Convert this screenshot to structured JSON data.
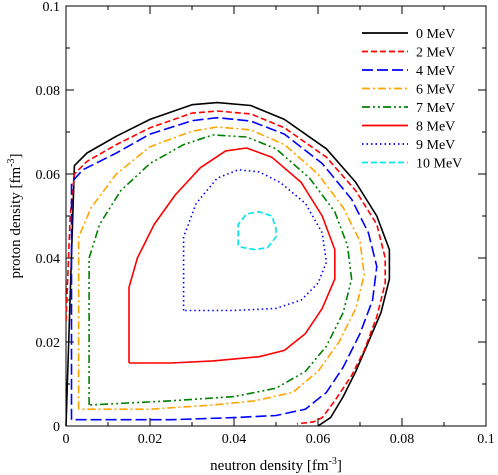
{
  "chart_data": {
    "type": "line",
    "xlabel": "neutron density [fm",
    "xlabel_exp": "-3",
    "xlabel_end": "]",
    "ylabel": "proton density [fm",
    "ylabel_exp": "-3",
    "ylabel_end": "]",
    "xlim": [
      0,
      0.1
    ],
    "ylim": [
      0,
      0.1
    ],
    "xticks": [
      "0",
      "0.02",
      "0.04",
      "0.06",
      "0.08",
      "0.1"
    ],
    "yticks": [
      "0",
      "0.02",
      "0.04",
      "0.06",
      "0.08",
      "0.1"
    ],
    "grid": false,
    "legend_position": "top-right",
    "series": [
      {
        "name": "0 MeV",
        "color": "#000000",
        "dash": "solid",
        "points": [
          [
            0.0,
            0.0
          ],
          [
            0.002,
            0.062
          ],
          [
            0.005,
            0.065
          ],
          [
            0.012,
            0.069
          ],
          [
            0.02,
            0.073
          ],
          [
            0.03,
            0.0765
          ],
          [
            0.036,
            0.077
          ],
          [
            0.044,
            0.0763
          ],
          [
            0.052,
            0.073
          ],
          [
            0.062,
            0.066
          ],
          [
            0.069,
            0.058
          ],
          [
            0.074,
            0.05
          ],
          [
            0.077,
            0.042
          ],
          [
            0.077,
            0.035
          ],
          [
            0.075,
            0.027
          ],
          [
            0.072,
            0.02
          ],
          [
            0.069,
            0.013
          ],
          [
            0.066,
            0.007
          ],
          [
            0.063,
            0.002
          ],
          [
            0.06,
            0.0
          ]
        ]
      },
      {
        "name": "2 MeV",
        "color": "#ff0000",
        "dash": "dashed",
        "points": [
          [
            0.0,
            0.025
          ],
          [
            0.001,
            0.05
          ],
          [
            0.002,
            0.06
          ],
          [
            0.005,
            0.063
          ],
          [
            0.012,
            0.067
          ],
          [
            0.02,
            0.071
          ],
          [
            0.03,
            0.0745
          ],
          [
            0.036,
            0.075
          ],
          [
            0.044,
            0.0743
          ],
          [
            0.052,
            0.071
          ],
          [
            0.062,
            0.064
          ],
          [
            0.069,
            0.056
          ],
          [
            0.074,
            0.048
          ],
          [
            0.076,
            0.04
          ],
          [
            0.076,
            0.034
          ],
          [
            0.074,
            0.026
          ],
          [
            0.071,
            0.018
          ],
          [
            0.068,
            0.012
          ],
          [
            0.064,
            0.006
          ],
          [
            0.061,
            0.002
          ],
          [
            0.059,
            0.001
          ],
          [
            0.055,
            0.0005
          ]
        ]
      },
      {
        "name": "4 MeV",
        "color": "#0000ff",
        "dash": "longdash",
        "points": [
          [
            0.0013,
            0.0015
          ],
          [
            0.0013,
            0.058
          ],
          [
            0.004,
            0.061
          ],
          [
            0.012,
            0.065
          ],
          [
            0.02,
            0.0695
          ],
          [
            0.03,
            0.0727
          ],
          [
            0.036,
            0.0734
          ],
          [
            0.044,
            0.0726
          ],
          [
            0.052,
            0.0695
          ],
          [
            0.061,
            0.0625
          ],
          [
            0.068,
            0.054
          ],
          [
            0.072,
            0.046
          ],
          [
            0.074,
            0.038
          ],
          [
            0.073,
            0.03
          ],
          [
            0.07,
            0.022
          ],
          [
            0.066,
            0.014
          ],
          [
            0.062,
            0.008
          ],
          [
            0.057,
            0.004
          ],
          [
            0.05,
            0.0025
          ],
          [
            0.04,
            0.002
          ],
          [
            0.025,
            0.0015
          ],
          [
            0.01,
            0.0015
          ],
          [
            0.0013,
            0.0015
          ]
        ]
      },
      {
        "name": "6 MeV",
        "color": "#ffa500",
        "dash": "dashdot",
        "points": [
          [
            0.003,
            0.004
          ],
          [
            0.003,
            0.045
          ],
          [
            0.006,
            0.052
          ],
          [
            0.012,
            0.06
          ],
          [
            0.02,
            0.0665
          ],
          [
            0.03,
            0.0702
          ],
          [
            0.036,
            0.0712
          ],
          [
            0.044,
            0.0705
          ],
          [
            0.052,
            0.067
          ],
          [
            0.06,
            0.06
          ],
          [
            0.066,
            0.052
          ],
          [
            0.07,
            0.044
          ],
          [
            0.071,
            0.036
          ],
          [
            0.069,
            0.028
          ],
          [
            0.065,
            0.02
          ],
          [
            0.06,
            0.013
          ],
          [
            0.054,
            0.008
          ],
          [
            0.045,
            0.006
          ],
          [
            0.035,
            0.005
          ],
          [
            0.02,
            0.004
          ],
          [
            0.003,
            0.004
          ]
        ]
      },
      {
        "name": "7 MeV",
        "color": "#008000",
        "dash": "dashdotdot",
        "points": [
          [
            0.0055,
            0.005
          ],
          [
            0.0055,
            0.04
          ],
          [
            0.008,
            0.048
          ],
          [
            0.013,
            0.056
          ],
          [
            0.02,
            0.0625
          ],
          [
            0.028,
            0.067
          ],
          [
            0.035,
            0.0693
          ],
          [
            0.043,
            0.0688
          ],
          [
            0.05,
            0.066
          ],
          [
            0.058,
            0.059
          ],
          [
            0.064,
            0.051
          ],
          [
            0.067,
            0.043
          ],
          [
            0.068,
            0.035
          ],
          [
            0.066,
            0.027
          ],
          [
            0.062,
            0.019
          ],
          [
            0.057,
            0.013
          ],
          [
            0.05,
            0.009
          ],
          [
            0.04,
            0.007
          ],
          [
            0.025,
            0.006
          ],
          [
            0.0055,
            0.005
          ]
        ]
      },
      {
        "name": "8 MeV",
        "color": "#ff0000",
        "dash": "solid",
        "points": [
          [
            0.015,
            0.015
          ],
          [
            0.015,
            0.033
          ],
          [
            0.017,
            0.04
          ],
          [
            0.021,
            0.048
          ],
          [
            0.026,
            0.055
          ],
          [
            0.032,
            0.0615
          ],
          [
            0.038,
            0.0655
          ],
          [
            0.043,
            0.0662
          ],
          [
            0.049,
            0.064
          ],
          [
            0.056,
            0.058
          ],
          [
            0.061,
            0.05
          ],
          [
            0.064,
            0.042
          ],
          [
            0.064,
            0.035
          ],
          [
            0.061,
            0.028
          ],
          [
            0.057,
            0.022
          ],
          [
            0.052,
            0.018
          ],
          [
            0.046,
            0.0165
          ],
          [
            0.035,
            0.0155
          ],
          [
            0.025,
            0.015
          ],
          [
            0.015,
            0.015
          ]
        ]
      },
      {
        "name": "9 MeV",
        "color": "#0000ff",
        "dash": "dotted",
        "points": [
          [
            0.028,
            0.0275
          ],
          [
            0.028,
            0.045
          ],
          [
            0.031,
            0.053
          ],
          [
            0.036,
            0.059
          ],
          [
            0.041,
            0.061
          ],
          [
            0.046,
            0.0605
          ],
          [
            0.051,
            0.058
          ],
          [
            0.057,
            0.053
          ],
          [
            0.061,
            0.046
          ],
          [
            0.062,
            0.039
          ],
          [
            0.06,
            0.034
          ],
          [
            0.056,
            0.03
          ],
          [
            0.05,
            0.028
          ],
          [
            0.04,
            0.0275
          ],
          [
            0.028,
            0.0275
          ]
        ]
      },
      {
        "name": "10 MeV",
        "color": "#00e5ee",
        "dash": "dashed",
        "points": [
          [
            0.041,
            0.043
          ],
          [
            0.041,
            0.048
          ],
          [
            0.043,
            0.0505
          ],
          [
            0.046,
            0.051
          ],
          [
            0.049,
            0.05
          ],
          [
            0.05,
            0.047
          ],
          [
            0.05,
            0.045
          ],
          [
            0.048,
            0.0425
          ],
          [
            0.045,
            0.042
          ],
          [
            0.042,
            0.0425
          ],
          [
            0.041,
            0.043
          ]
        ]
      }
    ]
  }
}
